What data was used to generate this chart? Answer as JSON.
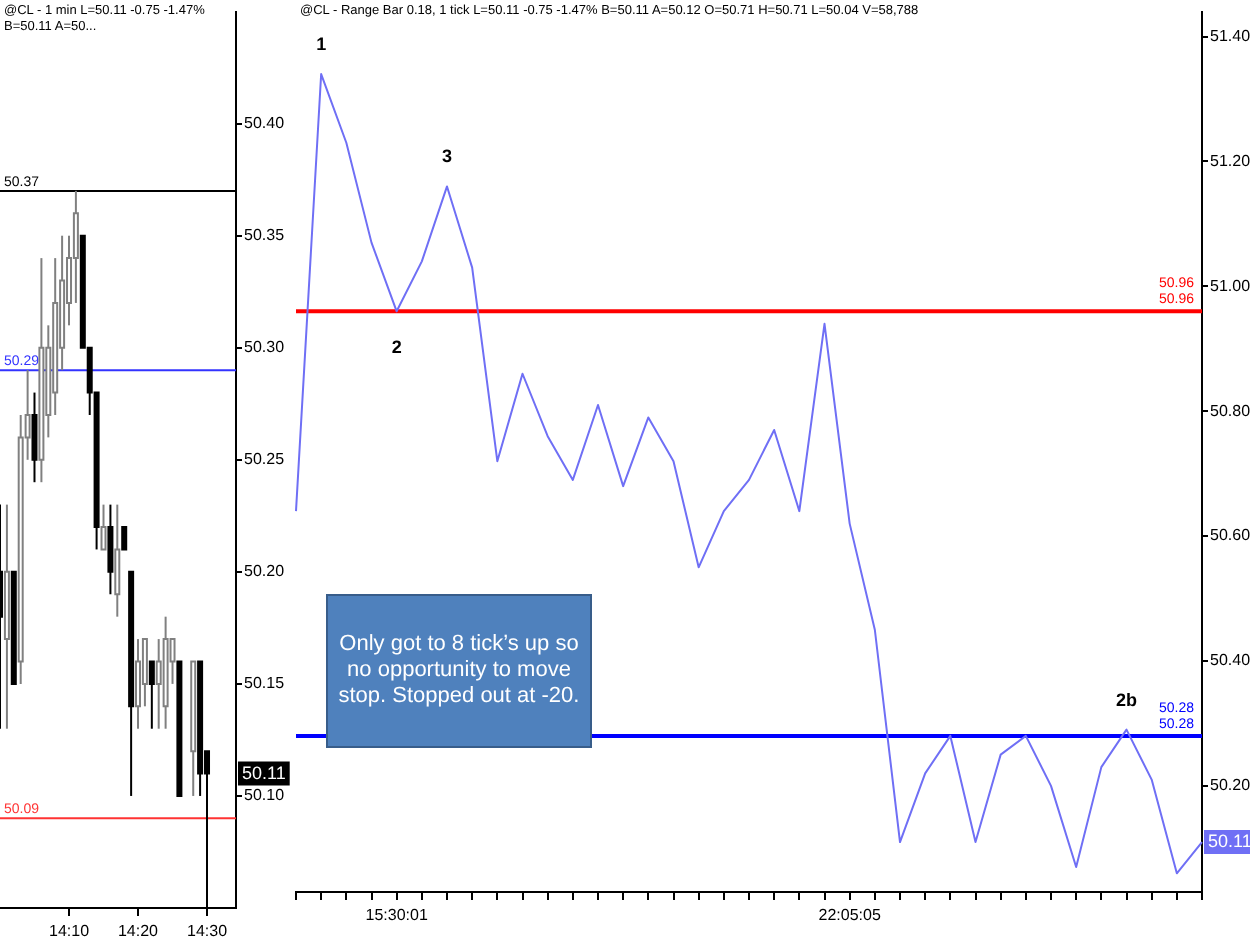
{
  "chart_data": [
    {
      "type": "candlestick",
      "title": "@CL - 1 min L=50.11 -0.75 -1.47% B=50.11 A=50...",
      "x": [
        14.0,
        14.0167,
        14.0333,
        14.05,
        14.0667,
        14.0833,
        14.1,
        14.1167,
        14.1333,
        14.15,
        14.1667,
        14.1833,
        14.2,
        14.2167,
        14.2333,
        14.25,
        14.2667,
        14.2833,
        14.3,
        14.3167,
        14.3333,
        14.35,
        14.3667,
        14.3833,
        14.4,
        14.4167,
        14.4333,
        14.4667,
        14.4833,
        14.5
      ],
      "ohlc": [
        [
          50.2,
          50.23,
          50.13,
          50.18
        ],
        [
          50.17,
          50.23,
          50.13,
          50.2
        ],
        [
          50.2,
          50.2,
          50.15,
          50.15
        ],
        [
          50.16,
          50.27,
          50.15,
          50.26
        ],
        [
          50.26,
          50.29,
          50.25,
          50.27
        ],
        [
          50.27,
          50.28,
          50.24,
          50.25
        ],
        [
          50.25,
          50.34,
          50.24,
          50.3
        ],
        [
          50.27,
          50.31,
          50.26,
          50.3
        ],
        [
          50.28,
          50.34,
          50.27,
          50.32
        ],
        [
          50.3,
          50.35,
          50.29,
          50.33
        ],
        [
          50.32,
          50.35,
          50.31,
          50.34
        ],
        [
          50.34,
          50.37,
          50.32,
          50.36
        ],
        [
          50.35,
          50.35,
          50.3,
          50.3
        ],
        [
          50.3,
          50.3,
          50.27,
          50.28
        ],
        [
          50.28,
          50.28,
          50.21,
          50.22
        ],
        [
          50.21,
          50.23,
          50.21,
          50.22
        ],
        [
          50.22,
          50.23,
          50.19,
          50.2
        ],
        [
          50.19,
          50.23,
          50.18,
          50.21
        ],
        [
          50.22,
          50.22,
          50.21,
          50.21
        ],
        [
          50.2,
          50.2,
          50.1,
          50.14
        ],
        [
          50.14,
          50.17,
          50.13,
          50.16
        ],
        [
          50.15,
          50.17,
          50.14,
          50.17
        ],
        [
          50.16,
          50.16,
          50.13,
          50.15
        ],
        [
          50.15,
          50.17,
          50.13,
          50.16
        ],
        [
          50.14,
          50.18,
          50.13,
          50.17
        ],
        [
          50.16,
          50.17,
          50.15,
          50.17
        ],
        [
          50.16,
          50.16,
          50.1,
          50.1
        ],
        [
          50.12,
          50.16,
          50.1,
          50.16
        ],
        [
          50.16,
          50.16,
          50.1,
          50.11
        ],
        [
          50.12,
          50.12,
          50.05,
          50.11
        ]
      ],
      "xlim": [
        14.0,
        14.57
      ],
      "xticks": [
        {
          "value": 14.1667,
          "label": "14:10"
        },
        {
          "value": 14.3333,
          "label": "14:20"
        },
        {
          "value": 14.5,
          "label": "14:30"
        }
      ],
      "ylim": [
        50.05,
        50.45
      ],
      "yticks": [
        {
          "value": 50.1,
          "label": "50.10"
        },
        {
          "value": 50.15,
          "label": "50.15"
        },
        {
          "value": 50.2,
          "label": "50.20"
        },
        {
          "value": 50.25,
          "label": "50.25"
        },
        {
          "value": 50.3,
          "label": "50.30"
        },
        {
          "value": 50.35,
          "label": "50.35"
        },
        {
          "value": 50.4,
          "label": "50.40"
        }
      ],
      "ref_lines": [
        {
          "axis": "y",
          "value": 50.37,
          "label": "50.37",
          "color": "#000000"
        },
        {
          "axis": "y",
          "value": 50.29,
          "label": "50.29",
          "color": "#3333ff"
        },
        {
          "axis": "y",
          "value": 50.09,
          "label": "50.09",
          "color": "#ff3333"
        }
      ],
      "annotations": [
        {
          "text": "50.11",
          "y": 50.11
        }
      ],
      "legend": false
    },
    {
      "type": "line",
      "title": "@CL - Range Bar 0.18, 1 tick L=50.11 -0.75 -1.47% B=50.11 A=50.12 O=50.71 H=50.71 L=50.04 V=58,788",
      "categories": [
        null,
        null,
        null,
        null,
        "15:30:01",
        null,
        null,
        null,
        null,
        null,
        null,
        null,
        null,
        null,
        null,
        null,
        null,
        null,
        null,
        null,
        null,
        null,
        "22:05:05",
        null,
        null,
        null,
        null,
        null,
        null,
        null,
        null,
        null,
        null,
        null,
        null,
        null,
        null
      ],
      "series": [
        {
          "color": "#6f6ff5",
          "values": [
            50.64,
            51.34,
            51.23,
            51.07,
            50.96,
            51.04,
            51.16,
            51.03,
            50.72,
            50.86,
            50.76,
            50.69,
            50.81,
            50.68,
            50.79,
            50.72,
            50.55,
            50.64,
            50.69,
            50.77,
            50.64,
            50.94,
            50.62,
            50.45,
            50.11,
            50.22,
            50.28,
            50.11,
            50.25,
            50.28,
            50.2,
            50.07,
            50.23,
            50.29,
            50.21,
            50.06,
            50.11
          ]
        }
      ],
      "ylim": [
        50.03,
        51.44
      ],
      "yticks": [
        {
          "value": 50.2,
          "label": "50.20"
        },
        {
          "value": 50.4,
          "label": "50.40"
        },
        {
          "value": 50.6,
          "label": "50.60"
        },
        {
          "value": 50.8,
          "label": "50.80"
        },
        {
          "value": 51.0,
          "label": "51.00"
        },
        {
          "value": 51.2,
          "label": "51.20"
        },
        {
          "value": 51.4,
          "label": "51.40"
        }
      ],
      "ref_lines": [
        {
          "axis": "y",
          "value": 50.96,
          "label": "50.96\n50.96",
          "color": "#ff0000"
        },
        {
          "axis": "y",
          "value": 50.28,
          "label": "50.28\n50.28",
          "color": "#0000ff"
        }
      ],
      "annotations": [
        {
          "text": "1",
          "y": 51.34
        },
        {
          "text": "2",
          "y": 50.96
        },
        {
          "text": "3",
          "y": 51.16
        },
        {
          "text": "2b",
          "y": 50.29
        },
        {
          "text": "50.11",
          "y": 50.11
        },
        "Only got to 8 tick’s up so no opportunity to move stop. Stopped out at -20."
      ],
      "marker": "none",
      "line_style": "solid",
      "legend": false
    }
  ]
}
